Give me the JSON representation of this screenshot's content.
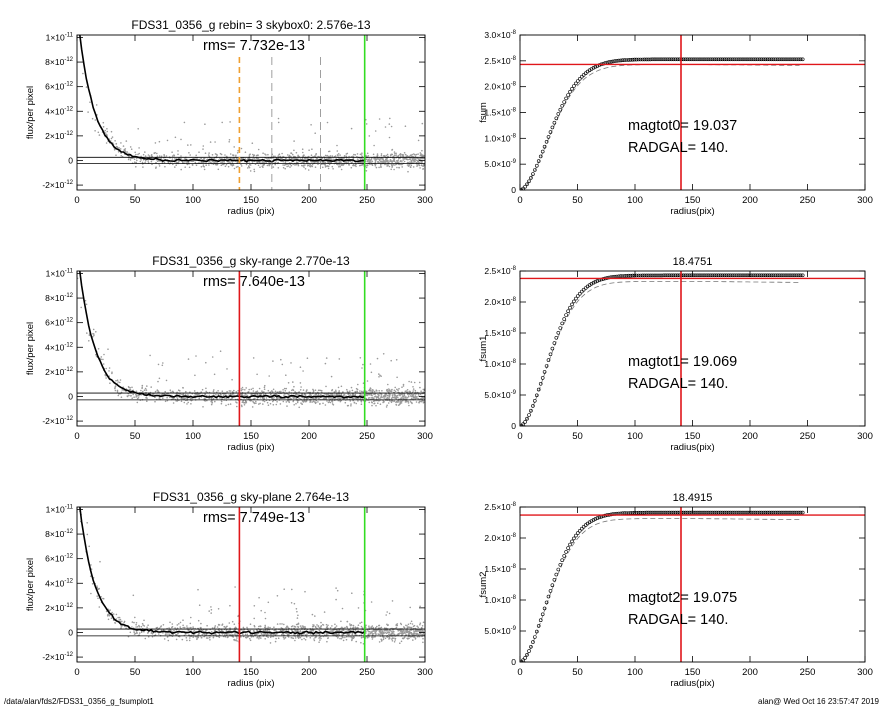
{
  "colors": {
    "axis": "#000000",
    "points": "#9a9a9a",
    "profile": "#000000",
    "red": "#e0161a",
    "green": "#33dd22",
    "orange": "#f0a030",
    "dash": "#777777"
  },
  "footer": {
    "path": "/data/alan/fds2/FDS31_0356_g_fsumplot1",
    "stamp": "alan@  Wed Oct 16 23:57:47 2019"
  },
  "chart_data": [
    {
      "type": "scatter",
      "panel": "profile-1",
      "title": "FDS31_0356_g rebin= 3    skybox0:  2.576e-13",
      "annotation": "rms= 7.732e-13",
      "xlabel": "radius (pix)",
      "ylabel": "flux/per pixel",
      "xlim": [
        0,
        300
      ],
      "ylim": [
        -2.4e-12,
        1.02e-11
      ],
      "xticks": [
        "0",
        "50",
        "100",
        "150",
        "200",
        "250",
        "300"
      ],
      "yticks": [
        {
          "v": 1e-11,
          "m": "1×10",
          "e": "-11"
        },
        {
          "v": 8e-12,
          "m": "8×10",
          "e": "-12"
        },
        {
          "v": 6e-12,
          "m": "6×10",
          "e": "-12"
        },
        {
          "v": 4e-12,
          "m": "4×10",
          "e": "-12"
        },
        {
          "v": 2e-12,
          "m": "2×10",
          "e": "-12"
        },
        {
          "v": 0,
          "m": "0",
          "e": ""
        },
        {
          "v": -2e-12,
          "m": "-2×10",
          "e": "-12"
        }
      ],
      "hlines": [
        2.576e-13,
        -2.576e-13
      ],
      "vlines": [
        {
          "x": 140,
          "color": "orange",
          "style": "dashed"
        },
        {
          "x": 168,
          "color": "dash",
          "style": "dashed"
        },
        {
          "x": 210,
          "color": "dash",
          "style": "dashed"
        },
        {
          "x": 248,
          "color": "green",
          "style": "solid"
        }
      ],
      "series": [
        {
          "kind": "pixels",
          "color": "points"
        },
        {
          "kind": "profile",
          "color": "profile"
        }
      ]
    },
    {
      "type": "line",
      "panel": "growth-1",
      "title": "",
      "xlabel": "radius(pix)",
      "ylabel": "fsum",
      "annot1": "magtot0=  19.037",
      "annot2": "RADGAL=    140.",
      "xlim": [
        0,
        300
      ],
      "ylim": [
        0,
        3e-08
      ],
      "xticks": [
        "0",
        "50",
        "100",
        "150",
        "200",
        "250",
        "300"
      ],
      "yticks": [
        {
          "v": 3e-08,
          "m": "3.0×10",
          "e": "-8"
        },
        {
          "v": 2.5e-08,
          "m": "2.5×10",
          "e": "-8"
        },
        {
          "v": 2e-08,
          "m": "2.0×10",
          "e": "-8"
        },
        {
          "v": 1.5e-08,
          "m": "1.5×10",
          "e": "-8"
        },
        {
          "v": 1e-08,
          "m": "1.0×10",
          "e": "-8"
        },
        {
          "v": 5e-09,
          "m": "5.0×10",
          "e": "-9"
        },
        {
          "v": 0,
          "m": "0",
          "e": ""
        }
      ],
      "hline": 2.43e-08,
      "vline": 140,
      "plateau": 2.53e-08,
      "scale": 36
    },
    {
      "type": "scatter",
      "panel": "profile-2",
      "title": "FDS31_0356_g sky-range  2.770e-13",
      "annotation": "rms= 7.640e-13",
      "xlabel": "radius (pix)",
      "ylabel": "flux/per pixel",
      "xlim": [
        0,
        300
      ],
      "ylim": [
        -2.4e-12,
        1.02e-11
      ],
      "xticks": [
        "0",
        "50",
        "100",
        "150",
        "200",
        "250",
        "300"
      ],
      "yticks": [
        {
          "v": 1e-11,
          "m": "1×10",
          "e": "-11"
        },
        {
          "v": 8e-12,
          "m": "8×10",
          "e": "-12"
        },
        {
          "v": 6e-12,
          "m": "6×10",
          "e": "-12"
        },
        {
          "v": 4e-12,
          "m": "4×10",
          "e": "-12"
        },
        {
          "v": 2e-12,
          "m": "2×10",
          "e": "-12"
        },
        {
          "v": 0,
          "m": "0",
          "e": ""
        },
        {
          "v": -2e-12,
          "m": "-2×10",
          "e": "-12"
        }
      ],
      "hlines": [
        2.77e-13,
        -2.77e-13
      ],
      "vlines": [
        {
          "x": 140,
          "color": "red",
          "style": "solid"
        },
        {
          "x": 248,
          "color": "green",
          "style": "solid"
        }
      ],
      "series": [
        {
          "kind": "pixels",
          "color": "points"
        },
        {
          "kind": "profile",
          "color": "profile"
        }
      ]
    },
    {
      "type": "line",
      "panel": "growth-2",
      "title": "18.4751",
      "xlabel": "radius(pix)",
      "ylabel": "fsum1",
      "annot1": "magtot1=  19.069",
      "annot2": "RADGAL=    140.",
      "xlim": [
        0,
        300
      ],
      "ylim": [
        0,
        2.5e-08
      ],
      "xticks": [
        "0",
        "50",
        "100",
        "150",
        "200",
        "250",
        "300"
      ],
      "yticks": [
        {
          "v": 2.5e-08,
          "m": "2.5×10",
          "e": "-8"
        },
        {
          "v": 2e-08,
          "m": "2.0×10",
          "e": "-8"
        },
        {
          "v": 1.5e-08,
          "m": "1.5×10",
          "e": "-8"
        },
        {
          "v": 1e-08,
          "m": "1.0×10",
          "e": "-8"
        },
        {
          "v": 5e-09,
          "m": "5.0×10",
          "e": "-9"
        },
        {
          "v": 0,
          "m": "0",
          "e": ""
        }
      ],
      "hline": 2.38e-08,
      "vline": 140,
      "plateau": 2.43e-08,
      "scale": 34
    },
    {
      "type": "scatter",
      "panel": "profile-3",
      "title": "FDS31_0356_g sky-plane  2.764e-13",
      "annotation": "rms= 7.749e-13",
      "xlabel": "radius (pix)",
      "ylabel": "flux/per pixel",
      "xlim": [
        0,
        300
      ],
      "ylim": [
        -2.4e-12,
        1.02e-11
      ],
      "xticks": [
        "0",
        "50",
        "100",
        "150",
        "200",
        "250",
        "300"
      ],
      "yticks": [
        {
          "v": 1e-11,
          "m": "1×10",
          "e": "-11"
        },
        {
          "v": 8e-12,
          "m": "8×10",
          "e": "-12"
        },
        {
          "v": 6e-12,
          "m": "6×10",
          "e": "-12"
        },
        {
          "v": 4e-12,
          "m": "4×10",
          "e": "-12"
        },
        {
          "v": 2e-12,
          "m": "2×10",
          "e": "-12"
        },
        {
          "v": 0,
          "m": "0",
          "e": ""
        },
        {
          "v": -2e-12,
          "m": "-2×10",
          "e": "-12"
        }
      ],
      "hlines": [
        2.764e-13,
        -2.764e-13
      ],
      "vlines": [
        {
          "x": 140,
          "color": "red",
          "style": "solid"
        },
        {
          "x": 248,
          "color": "green",
          "style": "solid"
        }
      ],
      "series": [
        {
          "kind": "pixels",
          "color": "points"
        },
        {
          "kind": "profile",
          "color": "profile"
        }
      ]
    },
    {
      "type": "line",
      "panel": "growth-3",
      "title": "18.4915",
      "xlabel": "radius(pix)",
      "ylabel": "fsum2",
      "annot1": "magtot2=  19.075",
      "annot2": "RADGAL=    140.",
      "xlim": [
        0,
        300
      ],
      "ylim": [
        0,
        2.5e-08
      ],
      "xticks": [
        "0",
        "50",
        "100",
        "150",
        "200",
        "250",
        "300"
      ],
      "yticks": [
        {
          "v": 2.5e-08,
          "m": "2.5×10",
          "e": "-8"
        },
        {
          "v": 2e-08,
          "m": "2.0×10",
          "e": "-8"
        },
        {
          "v": 1.5e-08,
          "m": "1.5×10",
          "e": "-8"
        },
        {
          "v": 1e-08,
          "m": "1.0×10",
          "e": "-8"
        },
        {
          "v": 5e-09,
          "m": "5.0×10",
          "e": "-9"
        },
        {
          "v": 0,
          "m": "0",
          "e": ""
        }
      ],
      "hline": 2.37e-08,
      "vline": 140,
      "plateau": 2.41e-08,
      "scale": 34
    }
  ]
}
